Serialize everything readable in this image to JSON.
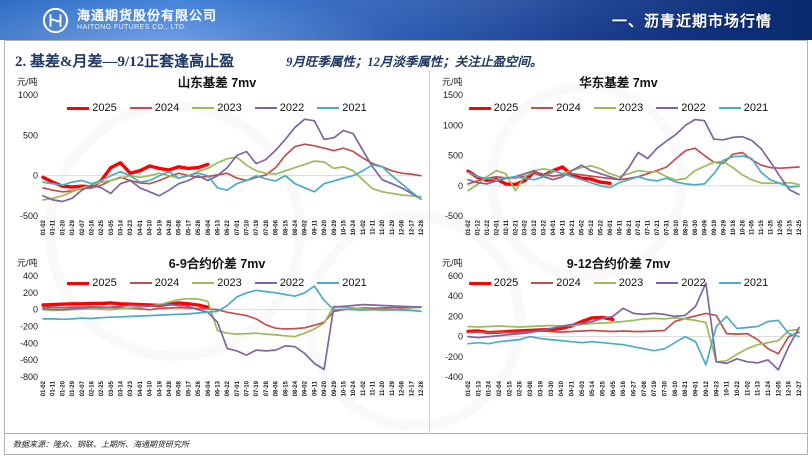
{
  "header": {
    "company_cn": "海通期货股份有限公司",
    "company_en": "HAITONG FUTURES CO., LTD.",
    "section_title": "一、沥青近期市场行情"
  },
  "page": {
    "title": "2. 基差&月差—9/12正套逢高止盈",
    "subtitle": "9月旺季属性；12月淡季属性；关注止盈空间。",
    "source": "数据来源：隆众、钢联、上期所、海通期货研究所"
  },
  "colors": {
    "title_navy": "#1F3864",
    "banner_light": "#2f6fc8",
    "banner_dark": "#0a2a6e",
    "zero_line": "#d9d9d9",
    "series": {
      "y2025": "#FF0000",
      "y2024": "#C0504D",
      "y2023": "#9BBB59",
      "y2022": "#8064A2",
      "y2021": "#4BACC6"
    }
  },
  "chart_data": [
    {
      "type": "line",
      "title": "山东基差 7mv",
      "unit": "元/吨",
      "ylim": [
        -500,
        1000
      ],
      "yticks": [
        1000,
        500,
        0,
        -500
      ],
      "legend_position": "top",
      "grid": "zero-line-only",
      "categories": [
        "01-02",
        "01-11",
        "01-20",
        "01-29",
        "02-07",
        "02-16",
        "02-25",
        "03-05",
        "03-14",
        "03-23",
        "04-01",
        "04-10",
        "04-19",
        "04-28",
        "05-08",
        "05-17",
        "05-26",
        "06-04",
        "06-13",
        "06-22",
        "07-01",
        "07-10",
        "07-19",
        "07-28",
        "08-06",
        "08-15",
        "08-24",
        "09-02",
        "09-11",
        "09-20",
        "09-29",
        "10-15",
        "10-24",
        "11-02",
        "11-11",
        "11-20",
        "11-29",
        "12-08",
        "12-17",
        "12-26"
      ],
      "series": [
        {
          "name": "2025",
          "color": "#FF0000",
          "width": 3.4,
          "values": [
            -20,
            -80,
            -130,
            -140,
            -130,
            -140,
            -60,
            100,
            160,
            30,
            60,
            120,
            90,
            70,
            110,
            90,
            100,
            140
          ]
        },
        {
          "name": "2024",
          "color": "#C0504D",
          "width": 1.7,
          "values": [
            -150,
            -180,
            -200,
            -190,
            -160,
            -150,
            -120,
            -60,
            -20,
            -60,
            -90,
            -100,
            -60,
            -10,
            30,
            0,
            -20,
            -10,
            10,
            30,
            -30,
            -60,
            -20,
            10,
            100,
            250,
            360,
            390,
            370,
            340,
            310,
            340,
            300,
            220,
            150,
            110,
            60,
            30,
            20,
            0
          ]
        },
        {
          "name": "2023",
          "color": "#9BBB59",
          "width": 1.7,
          "values": [
            -300,
            -280,
            -250,
            -200,
            -150,
            -120,
            -80,
            -60,
            -30,
            0,
            -20,
            0,
            30,
            0,
            -30,
            0,
            50,
            90,
            160,
            210,
            230,
            130,
            60,
            30,
            20,
            60,
            100,
            140,
            180,
            170,
            90,
            110,
            60,
            -50,
            -160,
            -200,
            -220,
            -240,
            -250,
            -260
          ]
        },
        {
          "name": "2022",
          "color": "#8064A2",
          "width": 1.7,
          "values": [
            -250,
            -300,
            -320,
            -280,
            -180,
            -120,
            -150,
            -220,
            -100,
            -60,
            -150,
            -200,
            -250,
            -180,
            -100,
            -60,
            0,
            -60,
            0,
            100,
            250,
            300,
            150,
            200,
            315,
            450,
            600,
            700,
            680,
            450,
            470,
            560,
            520,
            315,
            110,
            -50,
            -100,
            -150,
            -220,
            -290
          ]
        },
        {
          "name": "2021",
          "color": "#4BACC6",
          "width": 1.7,
          "values": [
            -80,
            -100,
            -120,
            -80,
            -60,
            -100,
            -60,
            0,
            50,
            0,
            -80,
            -60,
            0,
            50,
            -30,
            0,
            30,
            0,
            -150,
            -180,
            -100,
            -60,
            0,
            -40,
            -65,
            0,
            -100,
            -150,
            -200,
            -100,
            -65,
            -30,
            0,
            60,
            135,
            110,
            0,
            -100,
            -200,
            -290
          ]
        }
      ]
    },
    {
      "type": "line",
      "title": "华东基差 7mv",
      "unit": "元/吨",
      "ylim": [
        -500,
        1500
      ],
      "yticks": [
        1500,
        1000,
        500,
        0,
        -500
      ],
      "legend_position": "top",
      "grid": "zero-line-only",
      "categories": [
        "01-02",
        "01-12",
        "01-22",
        "02-01",
        "02-11",
        "02-21",
        "03-02",
        "03-12",
        "03-22",
        "04-01",
        "04-11",
        "04-21",
        "05-02",
        "05-12",
        "05-22",
        "06-01",
        "06-11",
        "06-21",
        "07-01",
        "07-11",
        "07-21",
        "07-31",
        "08-10",
        "08-20",
        "08-30",
        "09-09",
        "09-19",
        "09-29",
        "10-16",
        "10-26",
        "11-05",
        "11-15",
        "11-25",
        "12-05",
        "12-15",
        "12-25"
      ],
      "series": [
        {
          "name": "2025",
          "color": "#FF0000",
          "width": 3.4,
          "values": [
            240,
            140,
            90,
            110,
            30,
            20,
            85,
            220,
            170,
            250,
            310,
            175,
            125,
            110,
            60,
            40
          ]
        },
        {
          "name": "2024",
          "color": "#C0504D",
          "width": 1.7,
          "values": [
            30,
            80,
            120,
            150,
            130,
            130,
            160,
            200,
            180,
            160,
            180,
            200,
            180,
            160,
            140,
            120,
            100,
            120,
            150,
            200,
            250,
            310,
            450,
            580,
            620,
            500,
            390,
            370,
            520,
            550,
            430,
            340,
            300,
            290,
            300,
            310
          ]
        },
        {
          "name": "2023",
          "color": "#9BBB59",
          "width": 1.7,
          "values": [
            -80,
            20,
            150,
            250,
            200,
            -80,
            150,
            250,
            280,
            250,
            200,
            250,
            300,
            330,
            280,
            200,
            150,
            200,
            250,
            230,
            230,
            150,
            95,
            120,
            250,
            320,
            390,
            400,
            300,
            180,
            100,
            45,
            40,
            40,
            50,
            20
          ]
        },
        {
          "name": "2022",
          "color": "#8064A2",
          "width": 1.7,
          "values": [
            100,
            50,
            30,
            80,
            120,
            150,
            200,
            250,
            150,
            100,
            150,
            250,
            340,
            250,
            200,
            150,
            100,
            300,
            550,
            450,
            620,
            740,
            850,
            1000,
            1095,
            1075,
            770,
            760,
            800,
            810,
            750,
            610,
            390,
            150,
            -65,
            -145
          ]
        },
        {
          "name": "2021",
          "color": "#4BACC6",
          "width": 1.7,
          "values": [
            220,
            150,
            120,
            100,
            130,
            150,
            120,
            100,
            150,
            250,
            200,
            150,
            100,
            50,
            0,
            -30,
            50,
            100,
            150,
            100,
            80,
            125,
            60,
            30,
            15,
            30,
            200,
            420,
            480,
            490,
            450,
            220,
            95,
            40,
            -20,
            -10
          ]
        }
      ]
    },
    {
      "type": "line",
      "title": "6-9合约价差 7mv",
      "unit": "元/吨",
      "ylim": [
        -800,
        400
      ],
      "yticks": [
        400,
        200,
        0,
        -200,
        -400,
        -600,
        -800
      ],
      "legend_position": "top",
      "grid": "zero-line-only",
      "categories": [
        "01-02",
        "01-11",
        "01-20",
        "01-29",
        "02-07",
        "02-16",
        "02-25",
        "03-05",
        "03-14",
        "03-23",
        "04-01",
        "04-10",
        "04-19",
        "04-28",
        "05-08",
        "05-17",
        "05-26",
        "06-04",
        "06-13",
        "06-22",
        "07-01",
        "07-10",
        "07-19",
        "07-28",
        "08-06",
        "08-15",
        "08-24",
        "09-02",
        "09-11",
        "09-20",
        "09-29",
        "10-15",
        "10-24",
        "11-02",
        "11-11",
        "11-20",
        "11-29",
        "12-08",
        "12-17",
        "12-26"
      ],
      "series": [
        {
          "name": "2025",
          "color": "#FF0000",
          "width": 3.4,
          "values": [
            55,
            60,
            65,
            70,
            70,
            75,
            75,
            80,
            70,
            65,
            60,
            55,
            50,
            65,
            80,
            70,
            55,
            30
          ]
        },
        {
          "name": "2024",
          "color": "#C0504D",
          "width": 1.7,
          "values": [
            30,
            30,
            25,
            30,
            30,
            35,
            30,
            25,
            20,
            15,
            10,
            0,
            15,
            20,
            25,
            20,
            15,
            10,
            0,
            -30,
            -50,
            -70,
            -110,
            -180,
            -220,
            -230,
            -225,
            -215,
            -185,
            -150,
            -20,
            0,
            10,
            20,
            15,
            20,
            25,
            20,
            25,
            30
          ]
        },
        {
          "name": "2023",
          "color": "#9BBB59",
          "width": 1.7,
          "values": [
            0,
            -10,
            -5,
            0,
            5,
            10,
            5,
            0,
            10,
            20,
            30,
            40,
            60,
            90,
            120,
            130,
            125,
            100,
            -250,
            -280,
            -290,
            -285,
            -280,
            -290,
            -300,
            -310,
            -320,
            -280,
            -230,
            -160,
            40,
            30,
            20,
            10,
            0,
            -10,
            -5,
            0,
            20,
            30
          ]
        },
        {
          "name": "2022",
          "color": "#8064A2",
          "width": 1.7,
          "values": [
            10,
            5,
            0,
            10,
            20,
            30,
            25,
            30,
            40,
            50,
            45,
            40,
            50,
            60,
            50,
            40,
            0,
            -30,
            -150,
            -460,
            -490,
            -540,
            -480,
            -490,
            -480,
            -430,
            -440,
            -520,
            -640,
            -710,
            30,
            40,
            50,
            60,
            55,
            50,
            45,
            40,
            35,
            30
          ]
        },
        {
          "name": "2021",
          "color": "#4BACC6",
          "width": 1.7,
          "values": [
            -110,
            -110,
            -115,
            -110,
            -100,
            -105,
            -95,
            -90,
            -85,
            -80,
            -75,
            -70,
            -65,
            -60,
            -55,
            -50,
            -40,
            -30,
            -20,
            50,
            150,
            200,
            230,
            215,
            200,
            180,
            160,
            200,
            280,
            110,
            0,
            5,
            0,
            -5,
            0,
            5,
            0,
            -5,
            -10,
            -20
          ]
        }
      ]
    },
    {
      "type": "line",
      "title": "9-12合约价差 7mv",
      "unit": "元/吨",
      "ylim": [
        -400,
        600
      ],
      "yticks": [
        600,
        400,
        200,
        0,
        -200,
        -400
      ],
      "legend_position": "top",
      "grid": "zero-line-only",
      "categories": [
        "01-02",
        "01-13",
        "01-24",
        "02-04",
        "02-15",
        "02-26",
        "03-08",
        "03-19",
        "03-30",
        "04-10",
        "04-21",
        "05-03",
        "05-14",
        "05-25",
        "06-05",
        "06-16",
        "06-27",
        "07-08",
        "07-19",
        "07-30",
        "08-10",
        "08-21",
        "09-01",
        "09-12",
        "09-23",
        "10-11",
        "10-22",
        "11-02",
        "11-13",
        "11-24",
        "12-05",
        "12-16",
        "12-27"
      ],
      "series": [
        {
          "name": "2025",
          "color": "#FF0000",
          "width": 3.4,
          "values": [
            50,
            55,
            40,
            45,
            50,
            55,
            60,
            65,
            70,
            80,
            105,
            150,
            185,
            190,
            170
          ]
        },
        {
          "name": "2024",
          "color": "#C0504D",
          "width": 1.7,
          "values": [
            40,
            45,
            40,
            45,
            40,
            45,
            50,
            55,
            50,
            45,
            50,
            55,
            60,
            55,
            50,
            55,
            50,
            50,
            55,
            60,
            150,
            180,
            205,
            230,
            210,
            30,
            25,
            30,
            -30,
            -120,
            -170,
            0,
            45
          ]
        },
        {
          "name": "2023",
          "color": "#9BBB59",
          "width": 1.7,
          "values": [
            100,
            95,
            100,
            105,
            100,
            95,
            100,
            105,
            110,
            105,
            110,
            120,
            130,
            135,
            140,
            150,
            160,
            175,
            180,
            175,
            185,
            175,
            160,
            140,
            -250,
            -240,
            -175,
            -120,
            -80,
            -60,
            -40,
            60,
            70
          ]
        },
        {
          "name": "2022",
          "color": "#8064A2",
          "width": 1.7,
          "values": [
            0,
            -10,
            0,
            10,
            20,
            30,
            40,
            60,
            80,
            100,
            120,
            130,
            150,
            180,
            200,
            280,
            230,
            220,
            230,
            220,
            200,
            210,
            300,
            530,
            -250,
            -265,
            -220,
            -250,
            -260,
            -230,
            -330,
            -100,
            90
          ]
        },
        {
          "name": "2021",
          "color": "#4BACC6",
          "width": 1.7,
          "values": [
            -70,
            -60,
            -70,
            -50,
            -40,
            -30,
            0,
            -20,
            -30,
            -40,
            -50,
            -60,
            -50,
            -60,
            -70,
            -80,
            -100,
            -120,
            -140,
            -120,
            -60,
            0,
            -50,
            -280,
            100,
            200,
            80,
            90,
            100,
            150,
            160,
            30,
            0
          ]
        }
      ]
    }
  ]
}
